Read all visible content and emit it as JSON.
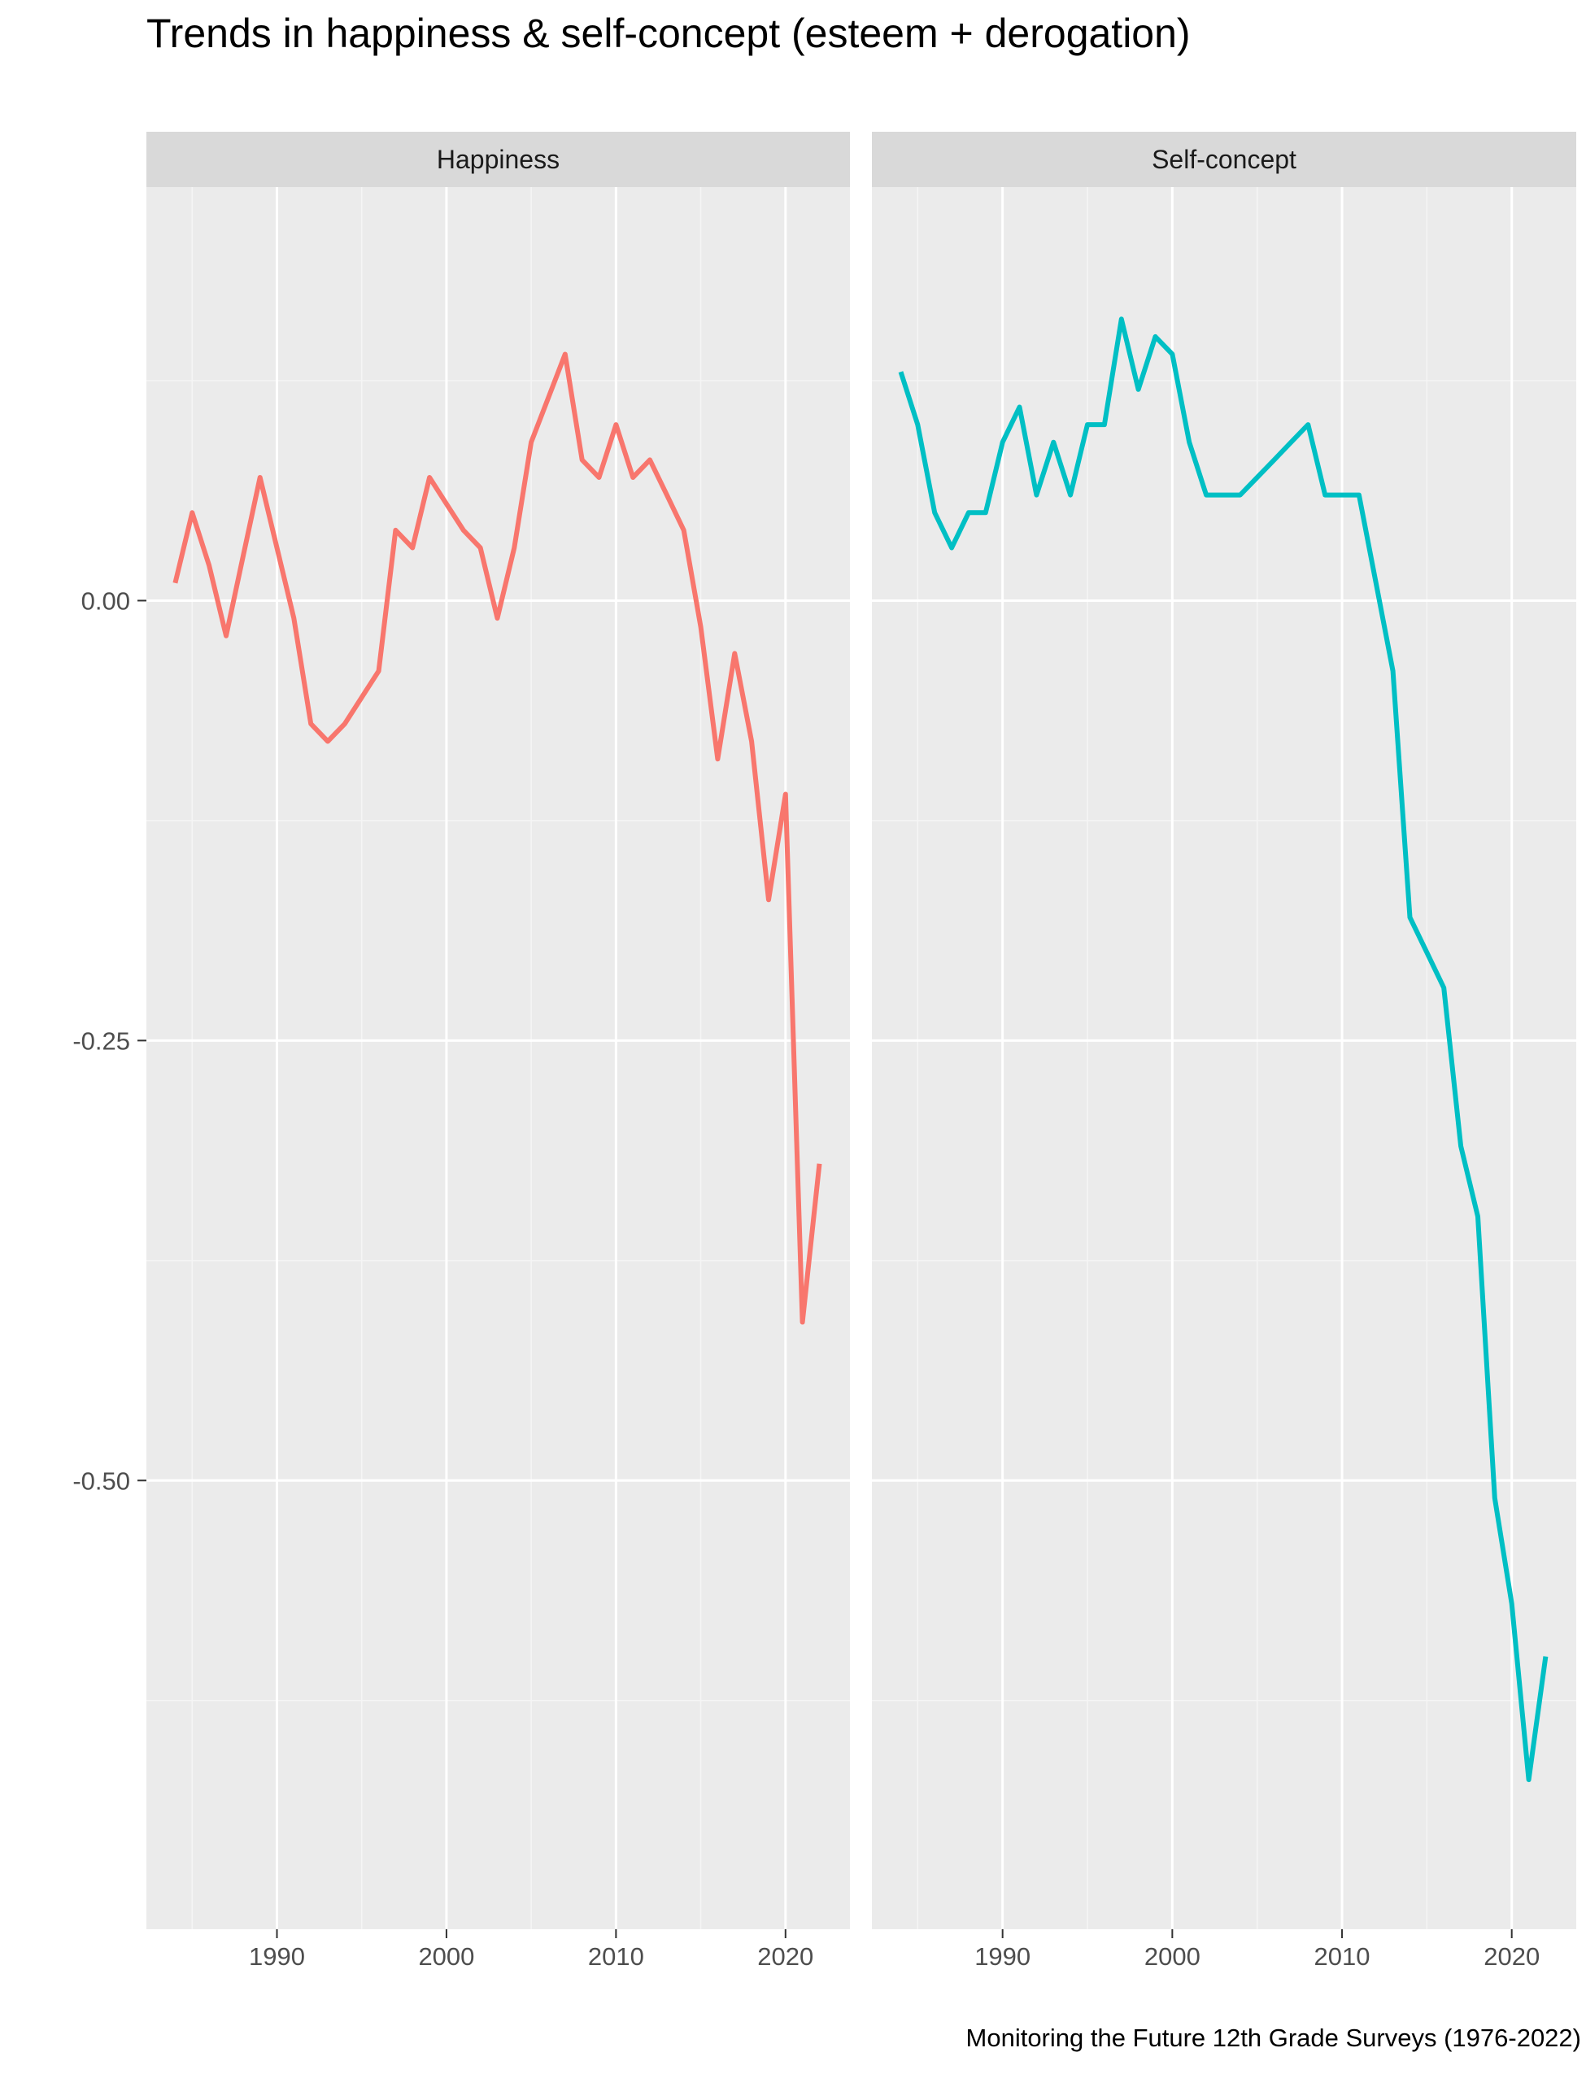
{
  "title": "Trends in happiness & self-concept (esteem + derogation)",
  "caption": "Monitoring the Future 12th Grade Surveys (1976-2022)",
  "chart_data": {
    "type": "line",
    "layout": "facets",
    "title": "Trends in happiness & self-concept (esteem + derogation)",
    "caption": "Monitoring the Future 12th Grade Surveys (1976-2022)",
    "xlabel": "",
    "ylabel": "",
    "xlim": [
      1982.3,
      2023.8
    ],
    "ylim": [
      -0.755,
      0.235
    ],
    "x_ticks": [
      1990,
      2000,
      2010,
      2020
    ],
    "x_tick_labels": [
      "1990",
      "2000",
      "2010",
      "2020"
    ],
    "y_ticks": [
      0,
      -0.25,
      -0.5
    ],
    "y_tick_labels": [
      "0.00",
      "-0.25",
      "-0.50"
    ],
    "grid": true,
    "legend": "none",
    "panels": [
      {
        "strip_label": "Happiness",
        "color": "#F8766D",
        "x": [
          1984,
          1985,
          1986,
          1987,
          1988,
          1989,
          1990,
          1991,
          1992,
          1993,
          1994,
          1995,
          1996,
          1997,
          1998,
          1999,
          2000,
          2001,
          2002,
          2003,
          2004,
          2005,
          2006,
          2007,
          2008,
          2009,
          2010,
          2011,
          2012,
          2013,
          2014,
          2015,
          2016,
          2017,
          2018,
          2019,
          2020,
          2021,
          2022
        ],
        "y": [
          0.01,
          0.05,
          0.02,
          -0.02,
          0.025,
          0.07,
          0.03,
          -0.01,
          -0.07,
          -0.08,
          -0.07,
          -0.055,
          -0.04,
          0.04,
          0.03,
          0.07,
          0.055,
          0.04,
          0.03,
          -0.01,
          0.03,
          0.09,
          0.115,
          0.14,
          0.08,
          0.07,
          0.1,
          0.07,
          0.08,
          0.06,
          0.04,
          -0.015,
          -0.09,
          -0.03,
          -0.08,
          -0.17,
          -0.11,
          -0.41,
          -0.32
        ]
      },
      {
        "strip_label": "Self-concept",
        "color": "#00BFC4",
        "x": [
          1984,
          1985,
          1986,
          1987,
          1988,
          1989,
          1990,
          1991,
          1992,
          1993,
          1994,
          1995,
          1996,
          1997,
          1998,
          1999,
          2000,
          2001,
          2002,
          2003,
          2004,
          2005,
          2006,
          2007,
          2008,
          2009,
          2010,
          2011,
          2012,
          2013,
          2014,
          2015,
          2016,
          2017,
          2018,
          2019,
          2020,
          2021,
          2022
        ],
        "y": [
          0.13,
          0.1,
          0.05,
          0.03,
          0.05,
          0.05,
          0.09,
          0.11,
          0.06,
          0.09,
          0.06,
          0.1,
          0.1,
          0.16,
          0.12,
          0.15,
          0.14,
          0.09,
          0.06,
          0.06,
          0.06,
          0.07,
          0.08,
          0.09,
          0.1,
          0.06,
          0.06,
          0.06,
          0.01,
          -0.04,
          -0.18,
          -0.2,
          -0.22,
          -0.31,
          -0.35,
          -0.51,
          -0.57,
          -0.67,
          -0.6
        ]
      }
    ]
  }
}
